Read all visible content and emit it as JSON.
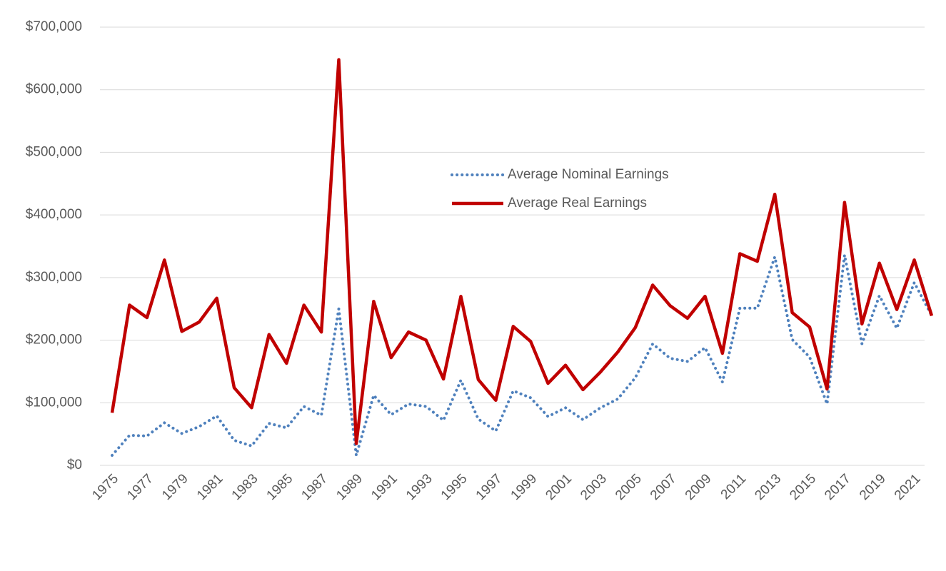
{
  "chart_data": {
    "type": "line",
    "categories": [
      "1975",
      null,
      "1977",
      null,
      "1979",
      null,
      "1981",
      null,
      "1983",
      null,
      "1985",
      null,
      "1987",
      null,
      "1989",
      null,
      "1991",
      null,
      "1993",
      null,
      "1995",
      null,
      "1997",
      null,
      "1999",
      null,
      "2001",
      null,
      "2003",
      null,
      "2005",
      null,
      "2007",
      null,
      "2009",
      null,
      "2011",
      null,
      "2013",
      null,
      "2015",
      null,
      "2017",
      null,
      "2019",
      null,
      "2021",
      null
    ],
    "series": [
      {
        "name": "Average Nominal Earnings",
        "color": "#4f81bd",
        "style": "dotted",
        "values": [
          16000,
          48000,
          47000,
          68000,
          51000,
          62000,
          79000,
          40000,
          31000,
          67000,
          60000,
          94000,
          80000,
          250000,
          16000,
          112000,
          81000,
          98000,
          94000,
          72000,
          136000,
          74000,
          55000,
          119000,
          108000,
          78000,
          92000,
          73000,
          92000,
          106000,
          140000,
          194000,
          171000,
          166000,
          188000,
          133000,
          251000,
          251000,
          333000,
          201000,
          173000,
          98000,
          336000,
          194000,
          271000,
          219000,
          292000,
          239000
        ]
      },
      {
        "name": "Average Real Earnings",
        "color": "#c00000",
        "style": "solid",
        "values": [
          84000,
          256000,
          236000,
          328000,
          214000,
          229000,
          267000,
          124000,
          92000,
          209000,
          163000,
          256000,
          213000,
          648000,
          35000,
          262000,
          172000,
          213000,
          200000,
          138000,
          270000,
          137000,
          104000,
          222000,
          198000,
          131000,
          160000,
          121000,
          149000,
          181000,
          220000,
          288000,
          255000,
          235000,
          270000,
          179000,
          338000,
          326000,
          433000,
          244000,
          221000,
          122000,
          420000,
          226000,
          323000,
          249000,
          328000,
          239000
        ]
      }
    ],
    "ylim": [
      0,
      700000
    ],
    "yticks": [
      {
        "value": 0,
        "label": "$0"
      },
      {
        "value": 100000,
        "label": "$100,000"
      },
      {
        "value": 200000,
        "label": "$200,000"
      },
      {
        "value": 300000,
        "label": "$300,000"
      },
      {
        "value": 400000,
        "label": "$400,000"
      },
      {
        "value": 500000,
        "label": "$500,000"
      },
      {
        "value": 600000,
        "label": "$600,000"
      },
      {
        "value": 700000,
        "label": "$700,000"
      }
    ],
    "grid": true,
    "legend_position": "center"
  }
}
